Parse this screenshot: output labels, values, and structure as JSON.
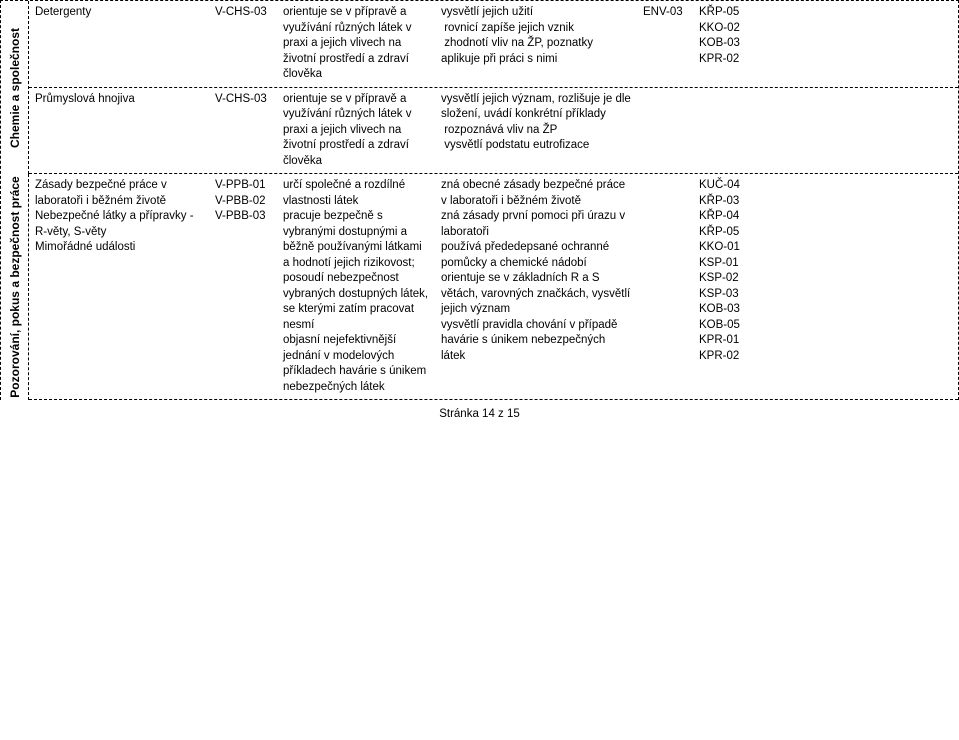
{
  "footer": "Stránka 14 z 15",
  "categories": [
    {
      "label": "Chemie a společnost",
      "env": "ENV-03",
      "codes": "KŘP-05\nKKO-02\nKOB-03\nKPR-02",
      "rows": [
        {
          "topic": "Detergenty",
          "code": "V-CHS-03",
          "objective": "orientuje se v přípravě a využívání různých látek v praxi a jejich vlivech na životní prostředí a zdraví člověka",
          "outcome": "vysvětlí jejich užití\n rovnicí zapíše jejich vznik\n zhodnotí vliv na ŽP, poznatky aplikuje při práci s nimi"
        },
        {
          "topic": "Průmyslová hnojiva",
          "code": "V-CHS-03",
          "objective": "orientuje se v přípravě a využívání různých látek v praxi a jejich vlivech na životní prostředí a zdraví člověka",
          "outcome": "vysvětlí jejich význam, rozlišuje je dle složení, uvádí konkrétní příklady\n rozpoznává vliv na ŽP\n vysvětlí podstatu eutrofizace"
        }
      ]
    },
    {
      "label": "Pozorování, pokus a bezpečnost práce",
      "env": "",
      "codes": "KUČ-04\nKŘP-03\nKŘP-04\nKŘP-05\nKKO-01\nKSP-01\nKSP-02\nKSP-03\nKOB-03\nKOB-05\nKPR-01\nKPR-02",
      "rows": [
        {
          "topic": "Zásady bezpečné práce v laboratoři i běžném životě\nNebezpečné látky a přípravky - R-věty, S-věty\nMimořádné události",
          "code": "V-PPB-01\nV-PBB-02\nV-PBB-03",
          "objective": "určí společné a rozdílné vlastnosti látek\npracuje bezpečně s vybranými dostupnými a běžně používanými látkami a hodnotí jejich rizikovost; posoudí nebezpečnost vybraných dostupných látek, se kterými zatím pracovat nesmí\nobjasní nejefektivnější jednání v modelových příkladech havárie s únikem nebezpečných látek",
          "outcome": "zná obecné zásady bezpečné práce v laboratoři i běžném životě\nzná zásady první pomoci při úrazu v laboratoři\npoužívá přededepsané ochranné pomůcky a chemické nádobí\norientuje se v základních R a S větách, varovných značkách, vysvětlí jejich význam\nvysvětlí pravidla chování v případě havárie s únikem nebezpečných látek"
        }
      ]
    }
  ]
}
